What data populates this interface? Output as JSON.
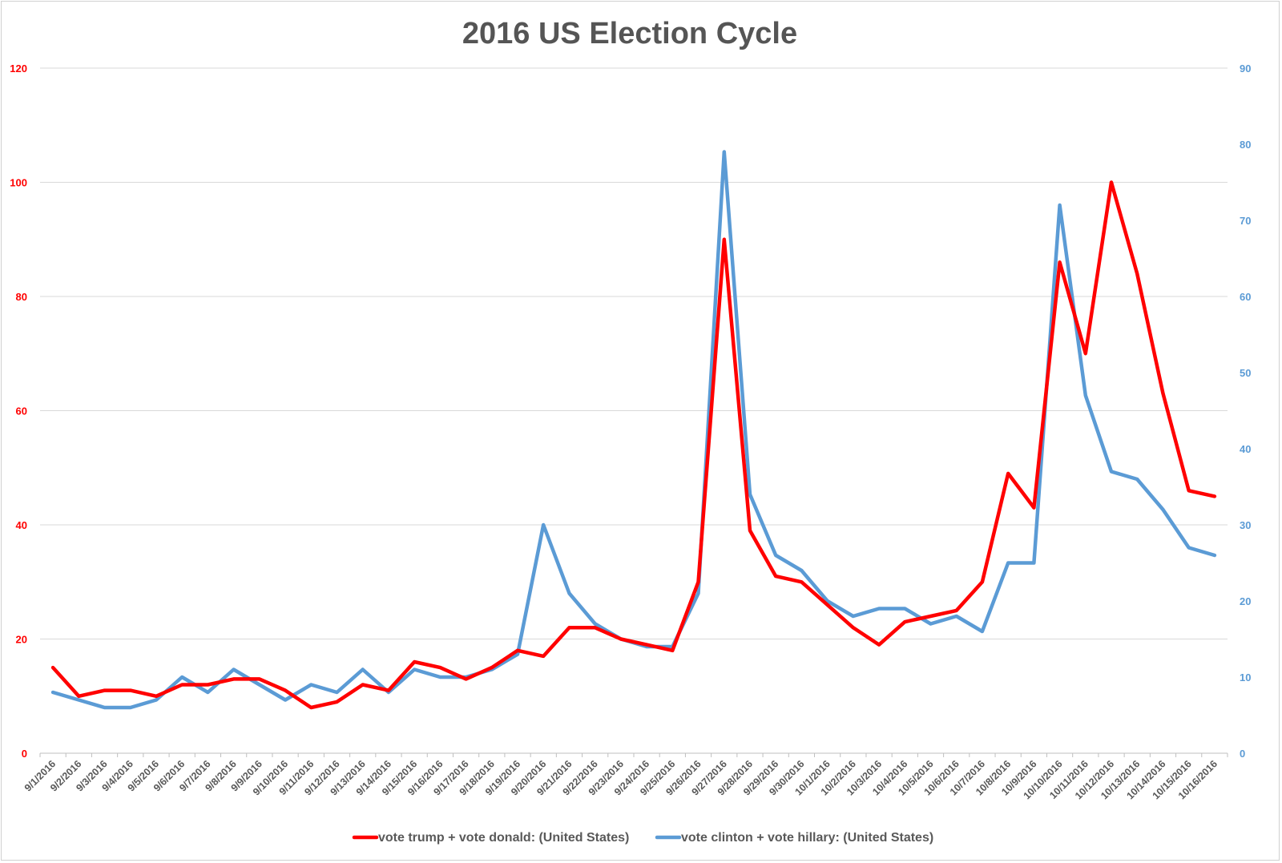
{
  "chart_data": {
    "type": "line",
    "title": "2016 US Election Cycle",
    "xlabel": "",
    "ylabel_left": "",
    "ylabel_right": "",
    "grid": true,
    "legend_position": "bottom",
    "x": [
      "9/1/2016",
      "9/2/2016",
      "9/3/2016",
      "9/4/2016",
      "9/5/2016",
      "9/6/2016",
      "9/7/2016",
      "9/8/2016",
      "9/9/2016",
      "9/10/2016",
      "9/11/2016",
      "9/12/2016",
      "9/13/2016",
      "9/14/2016",
      "9/15/2016",
      "9/16/2016",
      "9/17/2016",
      "9/18/2016",
      "9/19/2016",
      "9/20/2016",
      "9/21/2016",
      "9/22/2016",
      "9/23/2016",
      "9/24/2016",
      "9/25/2016",
      "9/26/2016",
      "9/27/2016",
      "9/28/2016",
      "9/29/2016",
      "9/30/2016",
      "10/1/2016",
      "10/2/2016",
      "10/3/2016",
      "10/4/2016",
      "10/5/2016",
      "10/6/2016",
      "10/7/2016",
      "10/8/2016",
      "10/9/2016",
      "10/10/2016",
      "10/11/2016",
      "10/12/2016",
      "10/13/2016",
      "10/14/2016",
      "10/15/2016",
      "10/16/2016"
    ],
    "y_left": {
      "min": 0,
      "max": 120,
      "ticks": [
        0,
        20,
        40,
        60,
        80,
        100,
        120
      ],
      "color": "#ff0000"
    },
    "y_right": {
      "min": 0,
      "max": 90,
      "ticks": [
        0,
        10,
        20,
        30,
        40,
        50,
        60,
        70,
        80,
        90
      ],
      "color": "#5b9bd5"
    },
    "series": [
      {
        "name": "vote trump + vote donald: (United States)",
        "axis": "left",
        "color": "#ff0000",
        "values": [
          15,
          10,
          11,
          11,
          10,
          12,
          12,
          13,
          13,
          11,
          8,
          9,
          12,
          11,
          16,
          15,
          13,
          15,
          18,
          17,
          22,
          22,
          20,
          19,
          18,
          30,
          90,
          39,
          31,
          30,
          26,
          22,
          19,
          23,
          24,
          25,
          30,
          49,
          43,
          86,
          70,
          100,
          84,
          63,
          46,
          45
        ]
      },
      {
        "name": "vote clinton + vote hillary: (United States)",
        "axis": "right",
        "color": "#5b9bd5",
        "values": [
          8,
          7,
          6,
          6,
          7,
          10,
          8,
          11,
          9,
          7,
          9,
          8,
          11,
          8,
          11,
          10,
          10,
          11,
          13,
          30,
          21,
          17,
          15,
          14,
          14,
          21,
          79,
          34,
          26,
          24,
          20,
          18,
          19,
          19,
          17,
          18,
          16,
          25,
          25,
          72,
          47,
          37,
          36,
          32,
          27,
          26
        ]
      }
    ]
  }
}
